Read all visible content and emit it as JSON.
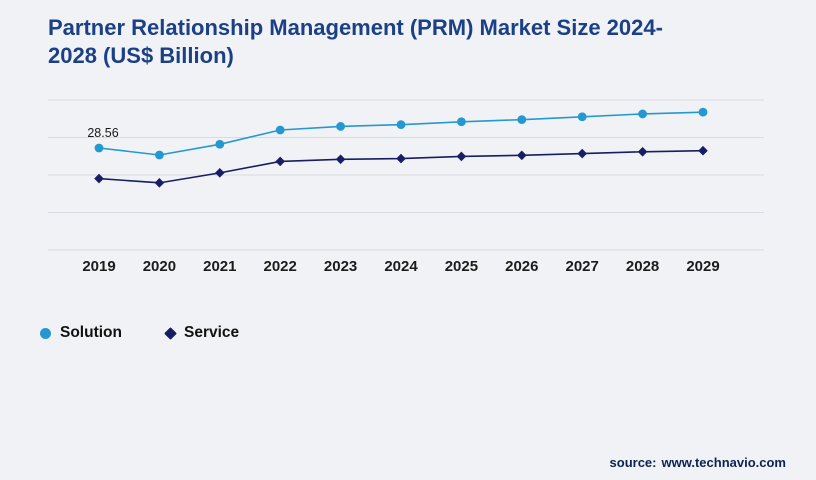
{
  "title": {
    "text": "Partner Relationship Management (PRM) Market Size 2024-2028 (US$ Billion)",
    "color": "#1b4086"
  },
  "source": {
    "prefix": "source:",
    "url": "www.technavio.com"
  },
  "legend": {
    "items": [
      {
        "label": "Solution",
        "color": "#2598d1",
        "marker": "circle"
      },
      {
        "label": "Service",
        "color": "#191d63",
        "marker": "diamond"
      }
    ]
  },
  "colors": {
    "background": "#f0f2f5",
    "gridline": "#d8dbe1",
    "solution_series": "#2598d1",
    "service_series": "#191d63"
  },
  "chart_data": {
    "type": "line",
    "title": "Partner Relationship Management (PRM) Market Size 2024-2028 (US$ Billion)",
    "x": [
      "2019",
      "2020",
      "2021",
      "2022",
      "2023",
      "2024",
      "2025",
      "2026",
      "2027",
      "2028",
      "2029"
    ],
    "series": [
      {
        "name": "Solution",
        "color": "#2598d1",
        "marker": "circle",
        "values": [
          28.56,
          26.6,
          29.6,
          33.6,
          34.6,
          35.1,
          35.9,
          36.5,
          37.3,
          38.1,
          38.6
        ]
      },
      {
        "name": "Service",
        "color": "#191d63",
        "marker": "diamond",
        "values": [
          20.0,
          18.8,
          21.6,
          24.8,
          25.4,
          25.6,
          26.2,
          26.5,
          27.0,
          27.5,
          27.8
        ]
      }
    ],
    "annotation": {
      "series": "Solution",
      "x": "2019",
      "label": "28.56",
      "value": 28.56
    },
    "ylim": [
      0,
      42
    ],
    "gridline_count": 5,
    "y_axis_visible": false,
    "legend_position": "bottom-left"
  }
}
